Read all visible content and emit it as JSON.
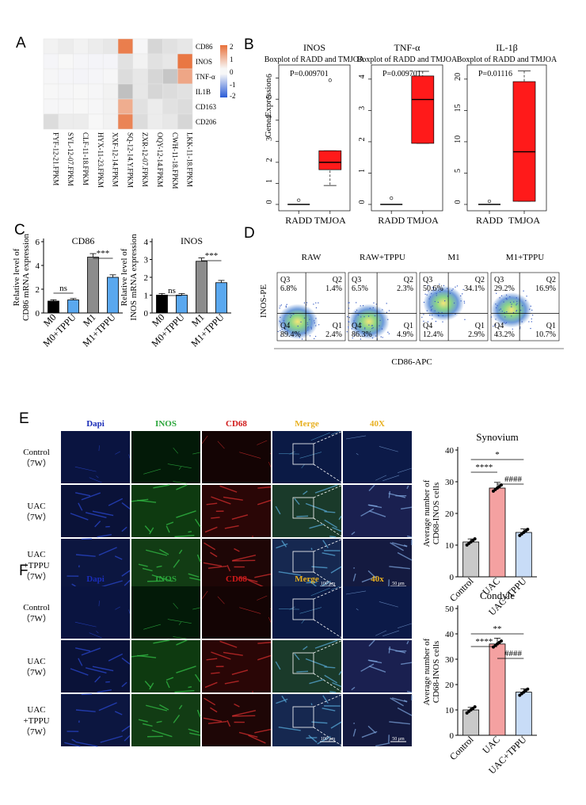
{
  "panels": {
    "A": "A",
    "B": "B",
    "C": "C",
    "D": "D",
    "E": "E",
    "F": "F"
  },
  "heatmap": {
    "genes": [
      "CD86",
      "INOS",
      "TNF-α",
      "IL1B",
      "CD163",
      "CD206"
    ],
    "samples": [
      "FYF-12-21.FPKM",
      "SYL-12-07.FPKM",
      "CLF-11-18.FPKM",
      "HYX-11-23.FPKM",
      "XXF-12-14.FPKM",
      "SQ-12-14.Y.FPKM",
      "ZXR-12-07.FPKM",
      "OQY-12-14.FPKM",
      "CWH-11-18.FPKM",
      "LKK-11-18.FPKM"
    ],
    "values": [
      [
        0.1,
        0.2,
        0.1,
        0.2,
        0.3,
        1.8,
        -0.1,
        0.6,
        0.4,
        0.3
      ],
      [
        -0.2,
        0.0,
        -0.2,
        -0.3,
        -0.3,
        0.4,
        0.1,
        0.4,
        0.3,
        1.9
      ],
      [
        -0.1,
        -0.2,
        -0.3,
        -0.2,
        -0.1,
        0.5,
        0.3,
        0.6,
        0.9,
        1.2
      ],
      [
        0.0,
        -0.1,
        0.0,
        -0.1,
        0.1,
        1.0,
        0.3,
        0.6,
        0.5,
        0.4
      ],
      [
        -0.1,
        -0.1,
        0.0,
        -0.1,
        0.1,
        1.1,
        0.4,
        0.2,
        0.4,
        0.5
      ],
      [
        0.5,
        0.2,
        0.2,
        0.0,
        0.1,
        1.7,
        0.5,
        0.2,
        0.3,
        0.6
      ]
    ],
    "legend_ticks": [
      "2",
      "1",
      "0",
      "-1",
      "-2"
    ]
  },
  "boxplots": {
    "ylabel": "Gene Expression",
    "subtitle": "Boxplot of RADD and TMJOA",
    "groups": [
      "RADD",
      "TMJOA"
    ],
    "plots": [
      {
        "title": "INOS",
        "p": "P=0.009701",
        "ticks": [
          "0",
          "1",
          "2",
          "3",
          "4",
          "5",
          "6"
        ]
      },
      {
        "title": "TNF-α",
        "p": "P=0.009701",
        "ticks": [
          "0",
          "1",
          "2",
          "3",
          "4"
        ]
      },
      {
        "title": "IL-1β",
        "p": "P=0.01116",
        "ticks": [
          "0",
          "5",
          "10",
          "15",
          "20"
        ]
      }
    ]
  },
  "chart_data": [
    {
      "type": "bar",
      "title": "CD86",
      "ylabel": "Relative level of CD86 mRNA expression",
      "categories": [
        "M0",
        "M0+TPPU",
        "M1",
        "M1+TPPU"
      ],
      "values": [
        1.0,
        1.1,
        4.7,
        3.0
      ],
      "ylim": [
        0,
        6
      ],
      "yticks": [
        "0",
        "2",
        "4",
        "6"
      ],
      "annotations": [
        "ns",
        "***"
      ]
    },
    {
      "type": "bar",
      "title": "INOS",
      "ylabel": "Relative level of INOS mRNA expression",
      "categories": [
        "M0",
        "M0+TPPU",
        "M1",
        "M1+TPPU"
      ],
      "values": [
        1.0,
        1.0,
        2.9,
        1.7
      ],
      "ylim": [
        0,
        4
      ],
      "yticks": [
        "0",
        "1",
        "2",
        "3",
        "4"
      ],
      "annotations": [
        "ns",
        "***"
      ]
    },
    {
      "type": "bar",
      "title": "Synovium",
      "ylabel": "Average number of CD68-INOS cells",
      "categories": [
        "Control",
        "UAC",
        "UAC+TPPU"
      ],
      "values": [
        11,
        28,
        14
      ],
      "ylim": [
        0,
        40
      ],
      "yticks": [
        "0",
        "10",
        "20",
        "30",
        "40"
      ],
      "annotations": [
        "*",
        "****",
        "####"
      ]
    },
    {
      "type": "bar",
      "title": "Condyle",
      "ylabel": "Average number of CD68-INOS cells",
      "categories": [
        "Control",
        "UAC",
        "UAC+TPPU"
      ],
      "values": [
        10,
        36,
        17
      ],
      "ylim": [
        0,
        50
      ],
      "yticks": [
        "0",
        "10",
        "20",
        "30",
        "40",
        "50"
      ],
      "annotations": [
        "**",
        "****",
        "####"
      ]
    }
  ],
  "flow": {
    "ylabel": "INOS-PE",
    "xlabel": "CD86-APC",
    "plots": [
      {
        "title": "RAW",
        "Q3": "Q3",
        "Q3v": "6.8%",
        "Q2": "Q2",
        "Q2v": "1.4%",
        "Q4": "Q4",
        "Q4v": "89.4%",
        "Q1": "Q1",
        "Q1v": "2.4%"
      },
      {
        "title": "RAW+TPPU",
        "Q3": "Q3",
        "Q3v": "6.5%",
        "Q2": "Q2",
        "Q2v": "2.3%",
        "Q4": "Q4",
        "Q4v": "86.3%",
        "Q1": "Q1",
        "Q1v": "4.9%"
      },
      {
        "title": "M1",
        "Q3": "Q3",
        "Q3v": "50.6%",
        "Q2": "Q2",
        "Q2v": "34.1%",
        "Q4": "Q4",
        "Q4v": "12.4%",
        "Q1": "Q1",
        "Q1v": "2.9%"
      },
      {
        "title": "M1+TPPU",
        "Q3": "Q3",
        "Q3v": "29.2%",
        "Q2": "Q2",
        "Q2v": "16.9%",
        "Q4": "Q4",
        "Q4v": "43.2%",
        "Q1": "Q1",
        "Q1v": "10.7%"
      }
    ]
  },
  "microscopy_E": {
    "cols": [
      "Dapi",
      "INOS",
      "CD68",
      "Merge",
      "40X"
    ],
    "rows": [
      [
        "Control",
        "（7W）"
      ],
      [
        "UAC",
        "（7W）"
      ],
      [
        "UAC",
        "+TPPU",
        "（7W）"
      ]
    ],
    "scale1": "100 μm",
    "scale2": "50 μm"
  },
  "microscopy_F": {
    "cols": [
      "Dapi",
      "INOS",
      "CD68",
      "Merge",
      "40x"
    ],
    "rows": [
      [
        "Control",
        "（7W）"
      ],
      [
        "UAC",
        "（7W）"
      ],
      [
        "UAC",
        "+TPPU",
        "（7W）"
      ]
    ],
    "scale1": "100 μm",
    "scale2": "50 μm"
  },
  "colors": {
    "red": "#ff1a1a",
    "grey": "#8c8c8c",
    "blue": "#5aa8ef",
    "pink": "#f4a1a1",
    "lightblue": "#c8dcf7",
    "lightgrey": "#c9c9c9"
  }
}
